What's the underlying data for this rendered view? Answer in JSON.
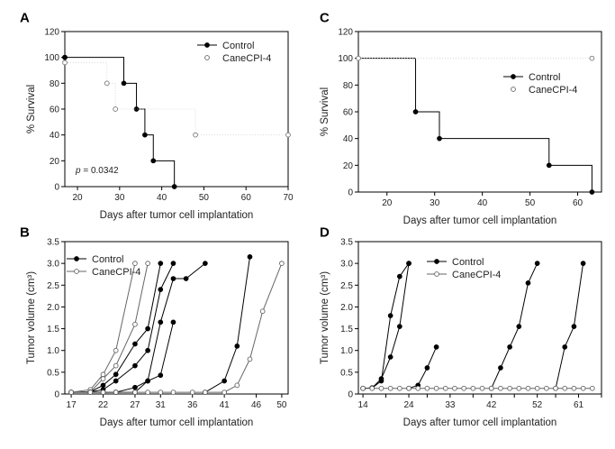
{
  "chart_data": [
    {
      "panel": "A",
      "type": "line",
      "xlabel": "Days after tumor cell implantation",
      "ylabel": "% Survival",
      "xlim": [
        17,
        70
      ],
      "ylim": [
        0,
        120
      ],
      "xticks": [
        20,
        30,
        40,
        50,
        60,
        70
      ],
      "yticks": [
        0,
        20,
        40,
        60,
        80,
        100,
        120
      ],
      "annotation_p": "p",
      "annotation_val": "= 0.0342",
      "series": [
        {
          "name": "Control",
          "marker": "filled",
          "points": [
            [
              17,
              100
            ],
            [
              31,
              80
            ],
            [
              34,
              60
            ],
            [
              36,
              40
            ],
            [
              38,
              20
            ],
            [
              43,
              0
            ]
          ],
          "step_start": [
            17,
            100
          ]
        },
        {
          "name": "CaneCPI-4",
          "marker": "open",
          "points": [
            [
              17,
              96
            ],
            [
              27,
              80
            ],
            [
              29,
              60
            ],
            [
              48,
              40
            ],
            [
              70,
              40
            ]
          ],
          "step_start": null
        }
      ]
    },
    {
      "panel": "C",
      "type": "line",
      "xlabel": "Days after tumor cell implantation",
      "ylabel": "% Survival",
      "xlim": [
        14,
        65
      ],
      "ylim": [
        0,
        120
      ],
      "xticks": [
        20,
        30,
        40,
        50,
        60
      ],
      "yticks": [
        0,
        20,
        40,
        60,
        80,
        100,
        120
      ],
      "series": [
        {
          "name": "Control",
          "marker": "filled",
          "points": [
            [
              26,
              60
            ],
            [
              31,
              40
            ],
            [
              54,
              20
            ],
            [
              63,
              0
            ]
          ],
          "step_start": [
            14,
            100
          ]
        },
        {
          "name": "CaneCPI-4",
          "marker": "open",
          "points": [
            [
              14,
              100
            ],
            [
              63,
              100
            ]
          ],
          "step_start": null
        }
      ]
    },
    {
      "panel": "B",
      "type": "line",
      "xlabel": "Days after tumor cell implantation",
      "ylabel": "Tumor volume (cm³)",
      "xlim": [
        16,
        51
      ],
      "ylim": [
        0,
        3.5
      ],
      "xticks": [
        17,
        22,
        27,
        31,
        36,
        41,
        46,
        50
      ],
      "yticks": [
        0,
        0.5,
        1.0,
        1.5,
        2.0,
        2.5,
        3.0,
        3.5
      ],
      "ytick_labels": [
        "0",
        "0.5",
        "1.0",
        "1.5",
        "2.0",
        "2.5",
        "3.0",
        "3.5"
      ],
      "series": [
        {
          "name": "Control",
          "marker": "filled",
          "lines": [
            [
              [
                17,
                0.04
              ],
              [
                20,
                0.05
              ],
              [
                22,
                0.2
              ],
              [
                24,
                0.45
              ],
              [
                27,
                1.15
              ],
              [
                29,
                1.5
              ],
              [
                31,
                3.0
              ]
            ],
            [
              [
                17,
                0.04
              ],
              [
                20,
                0.05
              ],
              [
                22,
                0.1
              ],
              [
                24,
                0.3
              ],
              [
                27,
                0.65
              ],
              [
                29,
                1.0
              ],
              [
                31,
                2.4
              ],
              [
                33,
                3.0
              ]
            ],
            [
              [
                17,
                0.04
              ],
              [
                20,
                0.05
              ],
              [
                22,
                0.04
              ],
              [
                24,
                0.04
              ],
              [
                27,
                0.15
              ],
              [
                29,
                0.3
              ],
              [
                31,
                1.65
              ],
              [
                33,
                2.65
              ],
              [
                35,
                2.65
              ],
              [
                38,
                3.0
              ]
            ],
            [
              [
                17,
                0.04
              ],
              [
                20,
                0.04
              ],
              [
                22,
                0.04
              ],
              [
                24,
                0.04
              ],
              [
                27,
                0.04
              ],
              [
                29,
                0.3
              ],
              [
                31,
                0.43
              ],
              [
                33,
                1.65
              ]
            ],
            [
              [
                38,
                0.04
              ],
              [
                41,
                0.3
              ],
              [
                43,
                1.1
              ],
              [
                45,
                3.15
              ]
            ]
          ]
        },
        {
          "name": "CaneCPI-4",
          "marker": "open",
          "lines": [
            [
              [
                17,
                0.04
              ],
              [
                20,
                0.1
              ],
              [
                22,
                0.45
              ],
              [
                24,
                1.0
              ],
              [
                27,
                3.0
              ]
            ],
            [
              [
                17,
                0.04
              ],
              [
                20,
                0.05
              ],
              [
                22,
                0.35
              ],
              [
                24,
                0.65
              ],
              [
                27,
                1.6
              ],
              [
                29,
                3.0
              ]
            ],
            [
              [
                17,
                0.04
              ],
              [
                20,
                0.04
              ],
              [
                22,
                0.04
              ],
              [
                24,
                0.04
              ],
              [
                27,
                0.04
              ],
              [
                29,
                0.04
              ],
              [
                31,
                0.04
              ],
              [
                33,
                0.04
              ],
              [
                36,
                0.04
              ],
              [
                38,
                0.04
              ],
              [
                41,
                0.04
              ],
              [
                43,
                0.2
              ],
              [
                45,
                0.8
              ],
              [
                47,
                1.9
              ],
              [
                50,
                3.0
              ]
            ]
          ]
        }
      ]
    },
    {
      "panel": "D",
      "type": "line",
      "xlabel": "Days after tumor cell implantation",
      "ylabel": "Tumor volume (cm³)",
      "xlim": [
        13,
        66
      ],
      "ylim": [
        0,
        3.5
      ],
      "xticks": [
        14,
        19,
        24,
        28,
        33,
        38,
        42,
        47,
        52,
        56,
        61,
        66
      ],
      "xtick_labels": [
        "14",
        "",
        "24",
        "",
        "33",
        "",
        "42",
        "",
        "52",
        "",
        "61",
        ""
      ],
      "yticks": [
        0,
        0.5,
        1.0,
        1.5,
        2.0,
        2.5,
        3.0,
        3.5
      ],
      "ytick_labels": [
        "0",
        "0.5",
        "1.0",
        "1.5",
        "2.0",
        "2.5",
        "3.0",
        "3.5"
      ],
      "series": [
        {
          "name": "Control",
          "marker": "filled",
          "lines": [
            [
              [
                14,
                0.13
              ],
              [
                16,
                0.14
              ],
              [
                18,
                0.3
              ],
              [
                20,
                1.8
              ],
              [
                22,
                2.7
              ],
              [
                24,
                3.0
              ]
            ],
            [
              [
                14,
                0.13
              ],
              [
                16,
                0.14
              ],
              [
                18,
                0.35
              ],
              [
                20,
                0.85
              ],
              [
                22,
                1.55
              ],
              [
                24,
                3.0
              ]
            ],
            [
              [
                24,
                0.13
              ],
              [
                26,
                0.2
              ],
              [
                28,
                0.6
              ],
              [
                30,
                1.08
              ]
            ],
            [
              [
                42,
                0.13
              ],
              [
                44,
                0.6
              ],
              [
                46,
                1.08
              ],
              [
                48,
                1.55
              ],
              [
                50,
                2.55
              ],
              [
                52,
                3.0
              ]
            ],
            [
              [
                56,
                0.13
              ],
              [
                58,
                1.08
              ],
              [
                60,
                1.55
              ],
              [
                62,
                3.0
              ]
            ]
          ]
        },
        {
          "name": "CaneCPI-4",
          "marker": "open",
          "lines": [
            [
              [
                14,
                0.13
              ],
              [
                16,
                0.13
              ],
              [
                18,
                0.13
              ],
              [
                20,
                0.13
              ],
              [
                22,
                0.13
              ],
              [
                24,
                0.13
              ],
              [
                26,
                0.13
              ],
              [
                28,
                0.13
              ],
              [
                30,
                0.13
              ],
              [
                32,
                0.13
              ],
              [
                34,
                0.13
              ],
              [
                36,
                0.13
              ],
              [
                38,
                0.13
              ],
              [
                40,
                0.13
              ],
              [
                42,
                0.13
              ],
              [
                44,
                0.13
              ],
              [
                46,
                0.13
              ],
              [
                48,
                0.13
              ],
              [
                50,
                0.13
              ],
              [
                52,
                0.13
              ],
              [
                54,
                0.13
              ],
              [
                56,
                0.13
              ],
              [
                58,
                0.13
              ],
              [
                60,
                0.13
              ],
              [
                62,
                0.13
              ],
              [
                64,
                0.13
              ]
            ]
          ]
        }
      ]
    }
  ]
}
